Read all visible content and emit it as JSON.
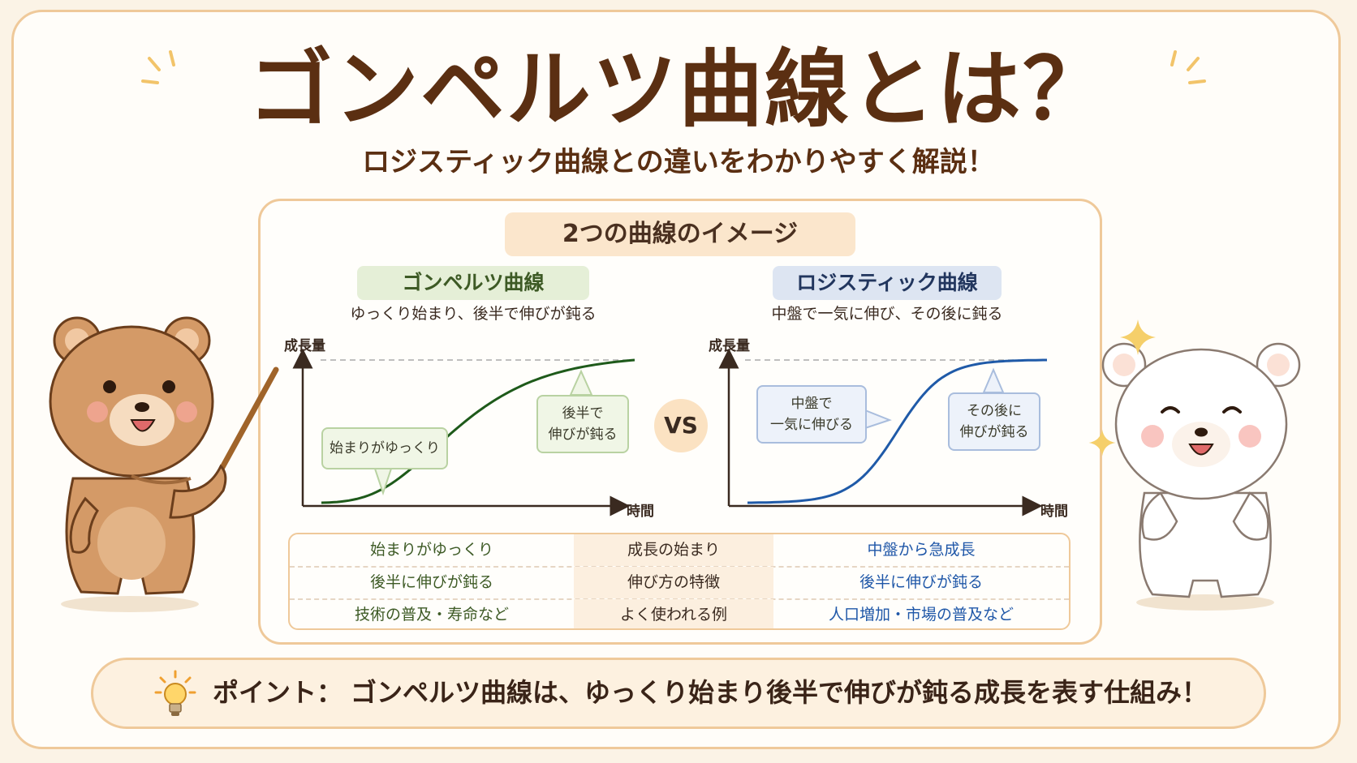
{
  "header": {
    "title": "ゴンペルツ曲線とは？",
    "subtitle": "ロジスティック曲線との違いをわかりやすく解説！"
  },
  "panel": {
    "title": "2つの曲線のイメージ",
    "vs": "VS",
    "gompertz": {
      "label": "ゴンペルツ曲線",
      "description": "ゆっくり始まり、後半で伸びが鈍る",
      "callout_start": "始まりがゆっくり",
      "callout_end": "後半で\n伸びが鈍る",
      "color": "#1e5a1a"
    },
    "logistic": {
      "label": "ロジスティック曲線",
      "description": "中盤で一気に伸び、その後に鈍る",
      "callout_mid": "中盤で\n一気に伸びる",
      "callout_end": "その後に\n伸びが鈍る",
      "color": "#1f5aa8"
    },
    "axes": {
      "y_label": "成長量",
      "x_label": "時間"
    }
  },
  "comparison": {
    "rows": [
      {
        "gompertz": "始まりがゆっくり",
        "aspect": "成長の始まり",
        "logistic": "中盤から急成長"
      },
      {
        "gompertz": "後半に伸びが鈍る",
        "aspect": "伸び方の特徴",
        "logistic": "後半に伸びが鈍る"
      },
      {
        "gompertz": "技術の普及・寿命など",
        "aspect": "よく使われる例",
        "logistic": "人口増加・市場の普及など"
      }
    ]
  },
  "point": {
    "label": "ポイント：",
    "text": "ゴンペルツ曲線は、ゆっくり始まり後半で伸びが鈍る成長を表す仕組み！"
  },
  "icons": {
    "bulb": "lightbulb-icon",
    "left_character": "brown-bear-with-pointer",
    "right_character": "white-bear-cheering",
    "sparkles": "sparkle-icon"
  }
}
